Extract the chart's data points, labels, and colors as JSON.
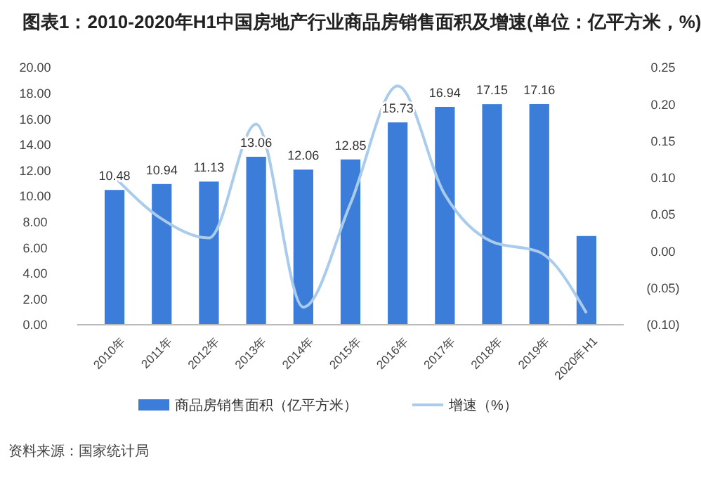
{
  "chart_data": {
    "type": "bar",
    "title": "图表1：2010-2020年H1中国房地产行业商品房销售面积及增速(单位：亿平方米，%)",
    "categories": [
      "2010年",
      "2011年",
      "2012年",
      "2013年",
      "2014年",
      "2015年",
      "2016年",
      "2017年",
      "2018年",
      "2019年",
      "2020年H1"
    ],
    "series": [
      {
        "name": "商品房销售面积（亿平方米）",
        "color": "#3b7dd8",
        "values": [
          10.48,
          10.94,
          11.13,
          13.06,
          12.06,
          12.85,
          15.73,
          16.94,
          17.15,
          17.16,
          6.9
        ],
        "value_labels": [
          "10.48",
          "10.94",
          "11.13",
          "13.06",
          "12.06",
          "12.85",
          "15.73",
          "16.94",
          "17.15",
          "17.16",
          null
        ]
      },
      {
        "name": "增速（%）",
        "type": "line",
        "axis": "y2",
        "color": "#a9cbec",
        "values": [
          0.101,
          0.044,
          0.018,
          0.173,
          -0.076,
          0.065,
          0.225,
          0.077,
          0.013,
          -0.001,
          -0.084
        ]
      }
    ],
    "ylim": [
      0,
      20
    ],
    "yticks": [
      {
        "value": 0,
        "label": "0.00"
      },
      {
        "value": 2,
        "label": "2.00"
      },
      {
        "value": 4,
        "label": "4.00"
      },
      {
        "value": 6,
        "label": "6.00"
      },
      {
        "value": 8,
        "label": "8.00"
      },
      {
        "value": 10,
        "label": "10.00"
      },
      {
        "value": 12,
        "label": "12.00"
      },
      {
        "value": 14,
        "label": "14.00"
      },
      {
        "value": 16,
        "label": "16.00"
      },
      {
        "value": 18,
        "label": "18.00"
      },
      {
        "value": 20,
        "label": "20.00"
      }
    ],
    "y2lim": [
      -0.1,
      0.25
    ],
    "y2ticks": [
      {
        "value": -0.1,
        "label": "(0.10)"
      },
      {
        "value": -0.05,
        "label": "(0.05)"
      },
      {
        "value": 0,
        "label": "0.00"
      },
      {
        "value": 0.05,
        "label": "0.05"
      },
      {
        "value": 0.1,
        "label": "0.10"
      },
      {
        "value": 0.15,
        "label": "0.15"
      },
      {
        "value": 0.2,
        "label": "0.20"
      },
      {
        "value": 0.25,
        "label": "0.25"
      }
    ],
    "grid": false,
    "legend": "bottom",
    "marker": "none",
    "annotations": [
      "资料来源：国家统计局"
    ]
  }
}
